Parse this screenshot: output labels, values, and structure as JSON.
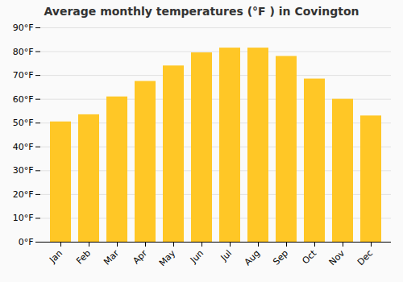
{
  "chart_data": {
    "type": "bar",
    "title": "Average monthly temperatures (°F ) in Covington",
    "categories": [
      "Jan",
      "Feb",
      "Mar",
      "Apr",
      "May",
      "Jun",
      "Jul",
      "Aug",
      "Sep",
      "Oct",
      "Nov",
      "Dec"
    ],
    "values": [
      50.5,
      53.5,
      61.0,
      67.5,
      74.0,
      79.5,
      81.5,
      81.5,
      78.0,
      68.5,
      60.0,
      53.0
    ],
    "color": "#FFC726",
    "ylim": [
      0,
      90
    ],
    "yticks": [
      {
        "value": 0,
        "label": "0°F"
      },
      {
        "value": 10,
        "label": "10°F"
      },
      {
        "value": 20,
        "label": "20°F"
      },
      {
        "value": 30,
        "label": "30°F"
      },
      {
        "value": 40,
        "label": "40°F"
      },
      {
        "value": 50,
        "label": "50°F"
      },
      {
        "value": 60,
        "label": "60°F"
      },
      {
        "value": 70,
        "label": "70°F"
      },
      {
        "value": 80,
        "label": "80°F"
      },
      {
        "value": 90,
        "label": "90°F"
      }
    ],
    "grid": true
  }
}
